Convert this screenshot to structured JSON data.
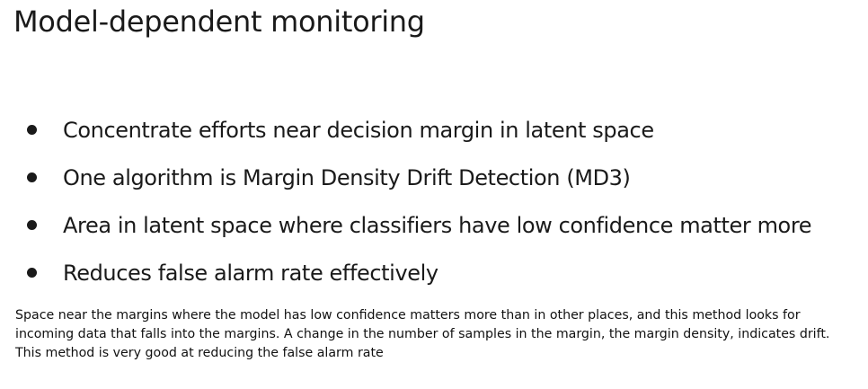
{
  "slide": {
    "title": "Model-dependent monitoring",
    "bullets": [
      "Concentrate efforts near decision margin in latent space",
      "One algorithm is Margin Density Drift Detection (MD3)",
      "Area in latent space where classifiers have low confidence matter more",
      "Reduces false alarm rate effectively"
    ]
  },
  "note": {
    "text": "Space near the margins where the model has low confidence matters more than in other places, and this method looks for incoming data that falls into the margins. A change in the number of samples in the margin, the margin density, indicates drift. This method is very good at reducing the false alarm rate"
  }
}
